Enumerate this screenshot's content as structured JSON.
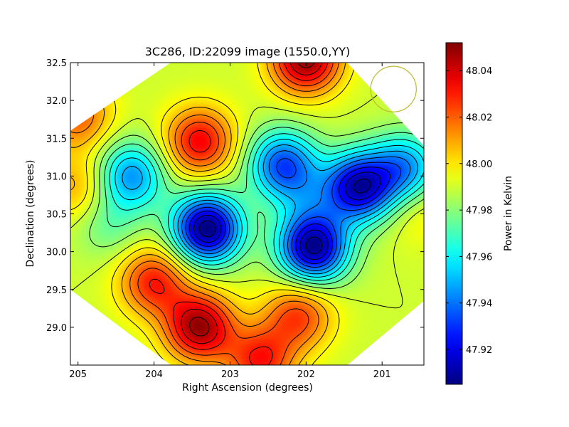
{
  "chart_data": {
    "type": "heatmap",
    "title": "3C286, ID:22099 image (1550.0,YY)",
    "xlabel": "Right Ascension (degrees)",
    "ylabel": "Declination (degrees)",
    "colorbar_label": "Power in Kelvin",
    "colormap": "jet",
    "xlim": [
      205.1,
      200.45
    ],
    "ylim": [
      28.5,
      32.5
    ],
    "clim": [
      47.905,
      48.052
    ],
    "x_ticks": [
      205,
      204,
      203,
      202,
      201
    ],
    "x_tick_labels": [
      "205",
      "204",
      "203",
      "202",
      "201"
    ],
    "y_ticks": [
      29.0,
      29.5,
      30.0,
      30.5,
      31.0,
      31.5,
      32.0,
      32.5
    ],
    "y_tick_labels": [
      "29.0",
      "29.5",
      "30.0",
      "30.5",
      "31.0",
      "31.5",
      "32.0",
      "32.5"
    ],
    "colorbar_ticks": [
      47.92,
      47.94,
      47.96,
      47.98,
      48.0,
      48.02,
      48.04
    ],
    "colorbar_tick_labels": [
      "47.92",
      "47.94",
      "47.96",
      "47.98",
      "48.00",
      "48.02",
      "48.04"
    ],
    "baseline_value": 47.99,
    "features": [
      {
        "ra": 202.0,
        "dec": 32.55,
        "value": 48.05,
        "kind": "peak"
      },
      {
        "ra": 203.4,
        "dec": 29.0,
        "value": 48.048,
        "kind": "peak"
      },
      {
        "ra": 203.4,
        "dec": 31.45,
        "value": 48.035,
        "kind": "peak"
      },
      {
        "ra": 204.0,
        "dec": 29.6,
        "value": 48.03,
        "kind": "peak"
      },
      {
        "ra": 202.1,
        "dec": 29.15,
        "value": 48.025,
        "kind": "peak"
      },
      {
        "ra": 202.6,
        "dec": 28.55,
        "value": 48.03,
        "kind": "peak"
      },
      {
        "ra": 205.0,
        "dec": 31.8,
        "value": 48.02,
        "kind": "peak"
      },
      {
        "ra": 205.0,
        "dec": 30.85,
        "value": 48.01,
        "kind": "peak"
      },
      {
        "ra": 204.3,
        "dec": 31.0,
        "value": 47.945,
        "kind": "trough"
      },
      {
        "ra": 203.3,
        "dec": 30.3,
        "value": 47.905,
        "kind": "trough"
      },
      {
        "ra": 202.3,
        "dec": 31.15,
        "value": 47.935,
        "kind": "trough"
      },
      {
        "ra": 201.9,
        "dec": 30.05,
        "value": 47.908,
        "kind": "trough"
      },
      {
        "ra": 201.3,
        "dec": 30.85,
        "value": 47.915,
        "kind": "trough"
      },
      {
        "ra": 200.7,
        "dec": 31.1,
        "value": 47.945,
        "kind": "trough"
      },
      {
        "ra": 202.0,
        "dec": 30.7,
        "value": 47.975,
        "kind": "saddle"
      },
      {
        "ra": 200.5,
        "dec": 30.55,
        "value": 48.0,
        "kind": "peak"
      },
      {
        "ra": 204.6,
        "dec": 30.35,
        "value": 47.975,
        "kind": "saddle"
      }
    ],
    "beam_marker": {
      "ra": 200.85,
      "dec": 32.15,
      "radius_deg": 0.3,
      "color": "#bdb932"
    },
    "colors": {
      "axes": "#000000",
      "contours": "#000000"
    }
  }
}
